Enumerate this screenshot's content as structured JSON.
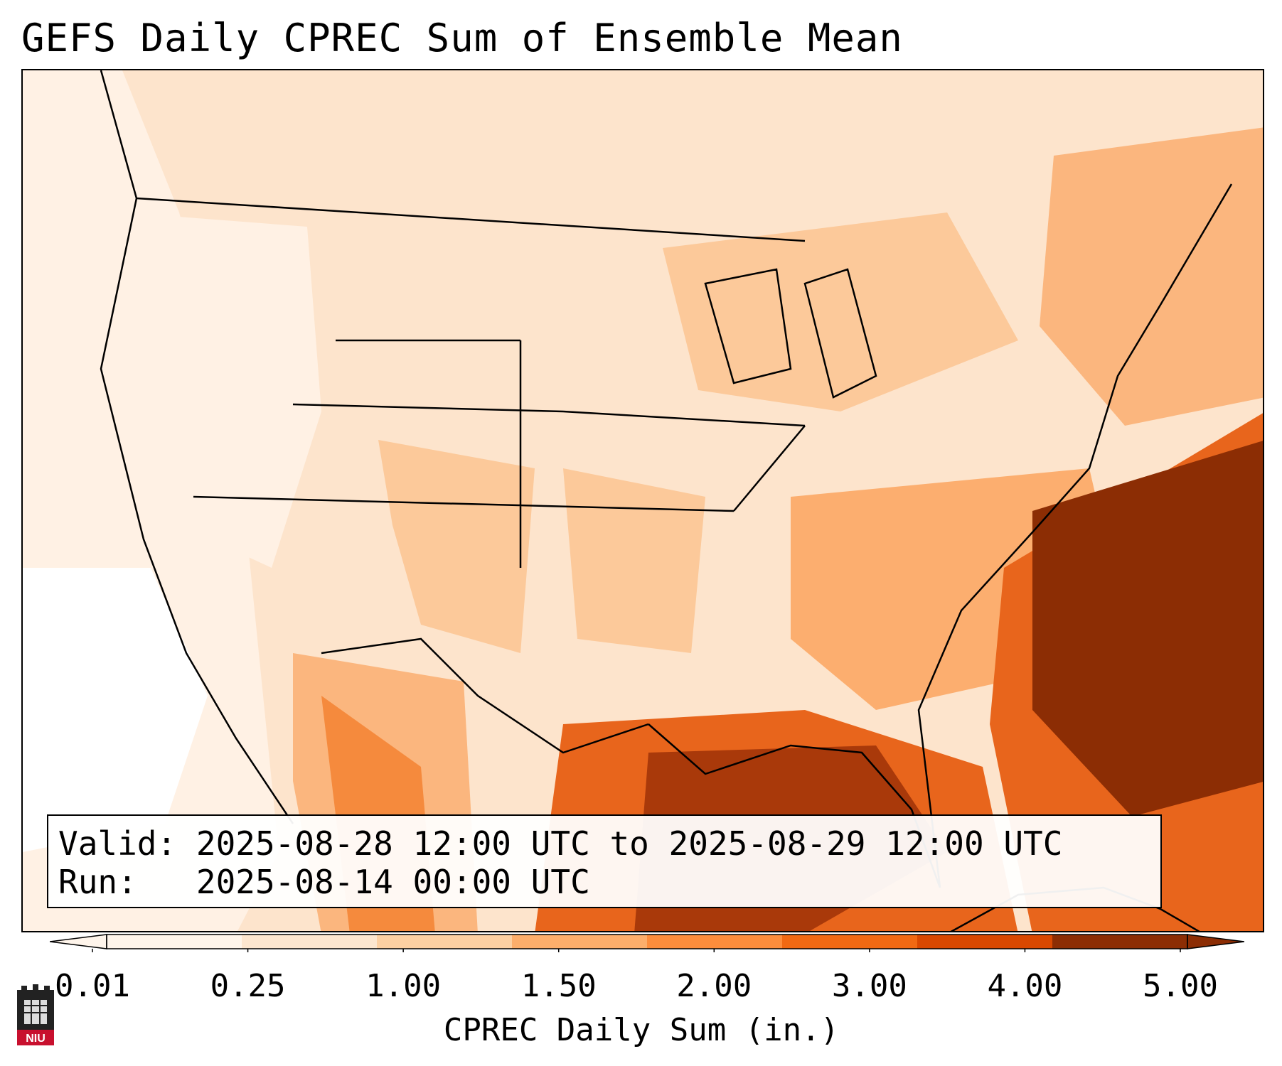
{
  "title": "GEFS Daily CPREC Sum of Ensemble Mean",
  "info": {
    "valid_label": "Valid:",
    "valid_value": "2025-08-28 12:00 UTC to 2025-08-29 12:00 UTC",
    "run_label": "Run:",
    "run_value": "2025-08-14 00:00 UTC"
  },
  "colorbar": {
    "label": "CPREC Daily Sum (in.)",
    "ticks": [
      "0.01",
      "0.25",
      "1.00",
      "1.50",
      "2.00",
      "3.00",
      "4.00",
      "5.00"
    ],
    "colors": [
      "#fff5eb",
      "#fde6cf",
      "#fdd0a2",
      "#fdae6b",
      "#fd8d3c",
      "#f16913",
      "#d94801",
      "#8c2d04"
    ]
  },
  "logo": {
    "text": "NIU",
    "color": "#c8102e"
  },
  "map": {
    "region": "Continental United States, Gulf of Mexico and western Atlantic",
    "highest_totals": "Gulf of Mexico and western Atlantic off the Southeast coast",
    "lowest_totals": "Pacific coast and Great Basin"
  }
}
